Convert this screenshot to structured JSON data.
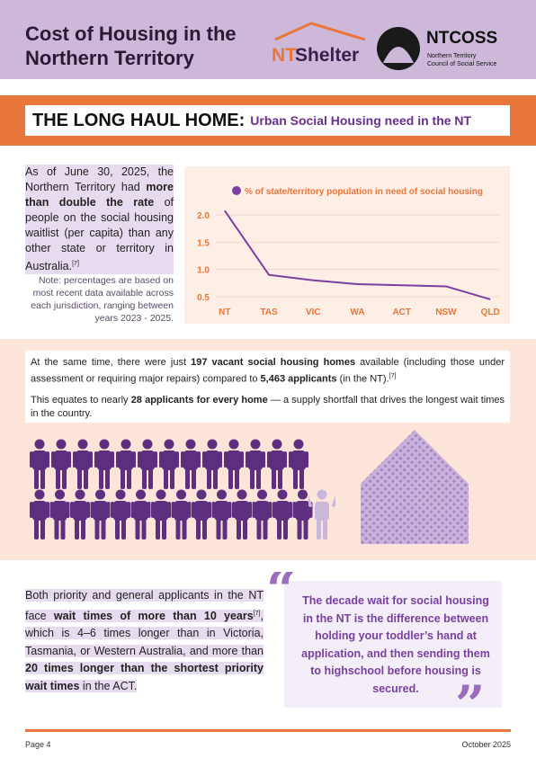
{
  "header": {
    "title": "Cost of Housing in the Northern Territory",
    "logo_ntshelter": {
      "part1": "NT",
      "part2": "Shelter"
    },
    "logo_ntcoss": {
      "name": "NTCOSS",
      "line1": "Northern Territory",
      "line2": "Council of Social Service"
    }
  },
  "banner": {
    "title": "THE LONG HAUL HOME:",
    "subtitle": "Urban Social Housing need in the NT"
  },
  "intro": {
    "parts": [
      "As of June 30, 2025, the Northern Territory had ",
      "more than double the rate",
      " of people on the social housing waitlist (per capita) than any other state or territory in Australia.",
      "[7]"
    ],
    "note": "Note: percentages are based on most recent data available across each jurisdiction, ranging between years 2023 - 2025."
  },
  "chart_data": {
    "type": "line",
    "categories": [
      "NT",
      "TAS",
      "VIC",
      "WA",
      "ACT",
      "NSW",
      "QLD"
    ],
    "series": [
      {
        "name": "% of state/territory population in need of social housing",
        "color": "#7b3fa0",
        "values": [
          2.08,
          0.9,
          0.8,
          0.73,
          0.71,
          0.69,
          0.45
        ]
      }
    ],
    "ylim": [
      0.4,
      2.2
    ],
    "yticks": [
      {
        "value": 0.5,
        "label": "0.5"
      },
      {
        "value": 1,
        "label": "1.0"
      },
      {
        "value": 1.5,
        "label": "1.5"
      },
      {
        "value": 2,
        "label": "2.0"
      }
    ],
    "grid": true,
    "legend": "top",
    "tick_color": "#e9763a"
  },
  "supply": {
    "paragraph1": [
      "At the same time, there were just ",
      "197 vacant social housing homes",
      " available (including those under assessment or requiring major repairs) compared to ",
      "5,463 applicants",
      " (in the NT).",
      "[7]"
    ],
    "paragraph2": [
      "This equates to nearly ",
      "28 applicants for every home",
      " — a supply shortfall that drives the longest wait times in the country."
    ]
  },
  "wait": {
    "parts": [
      "Both priority and general applicants in the NT face ",
      "wait times of more than 10 years",
      "[7]",
      ", which is 4–6 times longer than in Victoria, Tasmania, or Western Australia, and more than ",
      "20 times longer than the shortest priority wait times",
      " in the ACT."
    ],
    "quote": "The decade wait for social housing in the NT is the difference between holding your toddler’s hand at application, and then sending them to highschool before housing is secured."
  },
  "footer": {
    "page": "Page 4",
    "date": "October 2025"
  }
}
